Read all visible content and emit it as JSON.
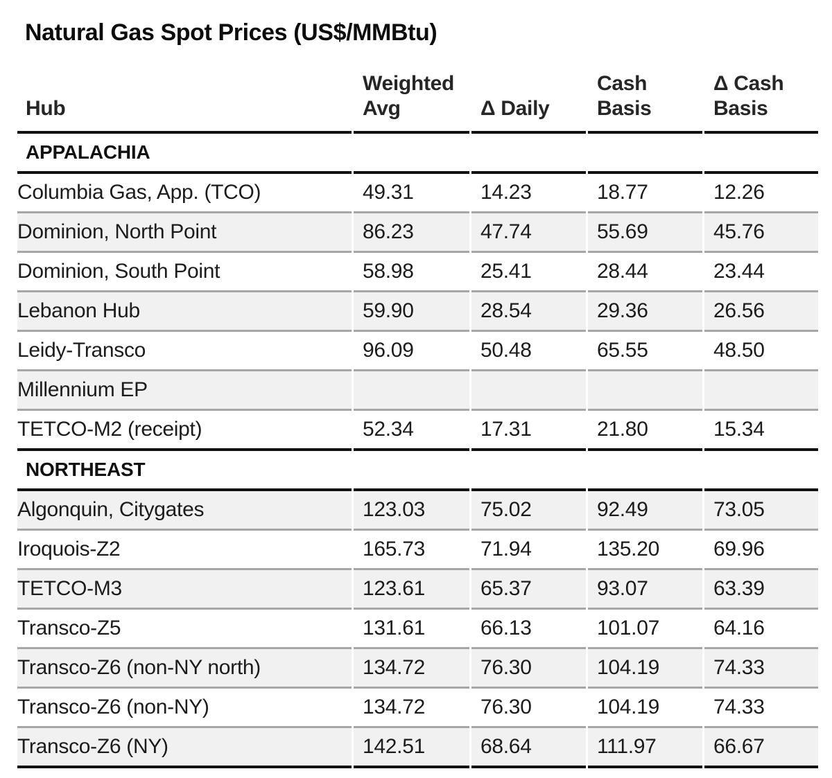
{
  "page_title": "Natural Gas Spot Prices (US$/MMBtu)",
  "colors": {
    "thick_rule": "#111111",
    "thin_rule": "#a6a6a6",
    "zebra_stripe": "#f1f1f1",
    "data_text": "#1c1c1c",
    "header_text": "#262626"
  },
  "chart_data": {
    "type": "table",
    "title": "Natural Gas Spot Prices (US$/MMBtu)",
    "columns": [
      {
        "key": "hub",
        "label": "Hub",
        "lines": [
          "",
          "Hub"
        ]
      },
      {
        "key": "weighted_avg",
        "label": "Weighted Avg",
        "lines": [
          "Weighted",
          "Avg"
        ]
      },
      {
        "key": "delta_daily",
        "label": "Δ Daily",
        "lines": [
          "",
          "Δ Daily"
        ]
      },
      {
        "key": "cash_basis",
        "label": "Cash Basis",
        "lines": [
          "Cash",
          "Basis"
        ]
      },
      {
        "key": "delta_cash_basis",
        "label": "Δ Cash Basis",
        "lines": [
          "Δ Cash",
          "Basis"
        ]
      }
    ],
    "sections": [
      {
        "name": "APPALACHIA",
        "rows": [
          {
            "hub": "Columbia Gas, App. (TCO)",
            "weighted_avg": "49.31",
            "delta_daily": "14.23",
            "cash_basis": "18.77",
            "delta_cash_basis": "12.26"
          },
          {
            "hub": "Dominion, North Point",
            "weighted_avg": "86.23",
            "delta_daily": "47.74",
            "cash_basis": "55.69",
            "delta_cash_basis": "45.76"
          },
          {
            "hub": "Dominion, South Point",
            "weighted_avg": "58.98",
            "delta_daily": "25.41",
            "cash_basis": "28.44",
            "delta_cash_basis": "23.44"
          },
          {
            "hub": "Lebanon Hub",
            "weighted_avg": "59.90",
            "delta_daily": "28.54",
            "cash_basis": "29.36",
            "delta_cash_basis": "26.56"
          },
          {
            "hub": "Leidy-Transco",
            "weighted_avg": "96.09",
            "delta_daily": "50.48",
            "cash_basis": "65.55",
            "delta_cash_basis": "48.50"
          },
          {
            "hub": "Millennium EP",
            "weighted_avg": "",
            "delta_daily": "",
            "cash_basis": "",
            "delta_cash_basis": ""
          },
          {
            "hub": "TETCO-M2 (receipt)",
            "weighted_avg": "52.34",
            "delta_daily": "17.31",
            "cash_basis": "21.80",
            "delta_cash_basis": "15.34"
          }
        ]
      },
      {
        "name": "NORTHEAST",
        "rows": [
          {
            "hub": "Algonquin, Citygates",
            "weighted_avg": "123.03",
            "delta_daily": "75.02",
            "cash_basis": "92.49",
            "delta_cash_basis": "73.05"
          },
          {
            "hub": "Iroquois-Z2",
            "weighted_avg": "165.73",
            "delta_daily": "71.94",
            "cash_basis": "135.20",
            "delta_cash_basis": "69.96"
          },
          {
            "hub": "TETCO-M3",
            "weighted_avg": "123.61",
            "delta_daily": "65.37",
            "cash_basis": "93.07",
            "delta_cash_basis": "63.39"
          },
          {
            "hub": "Transco-Z5",
            "weighted_avg": "131.61",
            "delta_daily": "66.13",
            "cash_basis": "101.07",
            "delta_cash_basis": "64.16"
          },
          {
            "hub": "Transco-Z6 (non-NY north)",
            "weighted_avg": "134.72",
            "delta_daily": "76.30",
            "cash_basis": "104.19",
            "delta_cash_basis": "74.33"
          },
          {
            "hub": "Transco-Z6 (non-NY)",
            "weighted_avg": "134.72",
            "delta_daily": "76.30",
            "cash_basis": "104.19",
            "delta_cash_basis": "74.33"
          },
          {
            "hub": "Transco-Z6 (NY)",
            "weighted_avg": "142.51",
            "delta_daily": "68.64",
            "cash_basis": "111.97",
            "delta_cash_basis": "66.67"
          }
        ]
      }
    ]
  }
}
